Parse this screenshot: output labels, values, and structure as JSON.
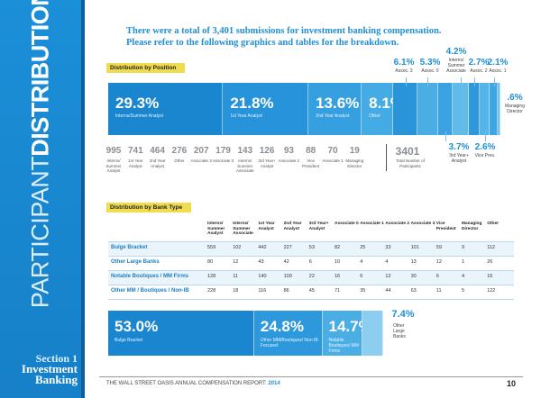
{
  "sidebar": {
    "title_light": "PARTICIPANT",
    "title_bold": "DISTRIBUTION",
    "section": "Section 1",
    "section_title": "Investment Banking"
  },
  "intro": [
    "There were a total of 3,401 submissions for investment banking compensation.",
    "Please refer to the following graphics and tables for the breakdown."
  ],
  "position": {
    "heading": "Distribution by Position",
    "segments": [
      {
        "value": 29.3,
        "label": "29.3%",
        "name": "Interns/Summer Analyst"
      },
      {
        "value": 21.8,
        "label": "21.8%",
        "name": "1st Year Analyst"
      },
      {
        "value": 13.6,
        "label": "13.6%",
        "name": "2nd Year Analyst"
      },
      {
        "value": 8.1,
        "label": "8.1%",
        "name": "Other"
      },
      {
        "value": 6.1,
        "label": "6.1%",
        "name": "Assoc. 3"
      },
      {
        "value": 5.3,
        "label": "5.3%",
        "name": "Assoc. 0"
      },
      {
        "value": 3.7,
        "label": "3.7%",
        "name": "3rd Year+ Analyst"
      },
      {
        "value": 4.2,
        "label": "4.2%",
        "name": "Interns/ Summer Associate"
      },
      {
        "value": 2.7,
        "label": "2.7%",
        "name": "Assoc. 2"
      },
      {
        "value": 2.6,
        "label": "2.6%",
        "name": "Vice Pres."
      },
      {
        "value": 2.1,
        "label": "2.1%",
        "name": "Assoc. 1"
      },
      {
        "value": 0.6,
        "label": ".6%",
        "name": "Managing Director"
      }
    ],
    "counts": [
      {
        "value": 995,
        "name": "Interns/ Summer Analyst"
      },
      {
        "value": 741,
        "name": "1st Year Analyst"
      },
      {
        "value": 464,
        "name": "2nd Year Analyst"
      },
      {
        "value": 276,
        "name": "Other"
      },
      {
        "value": 207,
        "name": "Associate 3"
      },
      {
        "value": 179,
        "name": "Associate 0"
      },
      {
        "value": 143,
        "name": "Interns/ Summer Associate"
      },
      {
        "value": 126,
        "name": "3rd Year+ Analyst"
      },
      {
        "value": 93,
        "name": "Associate 2"
      },
      {
        "value": 88,
        "name": "Vice President"
      },
      {
        "value": 70,
        "name": "Associate 1"
      },
      {
        "value": 19,
        "name": "Managing Director"
      }
    ],
    "total": {
      "value": 3401,
      "name": "Total Number of Participants"
    }
  },
  "bank": {
    "heading": "Distribution by Bank Type",
    "columns": [
      "Interns/ Summer Analyst",
      "Interns/ Summer Associate",
      "1st Year Analyst",
      "2nd Year Analyst",
      "3rd Year+ Analyst",
      "Associate 0",
      "Associate 1",
      "Associate 2",
      "Associate 3",
      "Vice President",
      "Managing Director",
      "Other"
    ],
    "rows": [
      {
        "name": "Bulge Bracket",
        "values": [
          559,
          102,
          442,
          227,
          53,
          82,
          25,
          33,
          101,
          59,
          9,
          112
        ]
      },
      {
        "name": "Other Large Banks",
        "values": [
          80,
          12,
          43,
          42,
          6,
          10,
          4,
          4,
          13,
          12,
          1,
          26
        ]
      },
      {
        "name": "Notable Boutiques / MM Firms",
        "values": [
          128,
          11,
          140,
          109,
          22,
          16,
          6,
          12,
          30,
          6,
          4,
          16
        ]
      },
      {
        "name": "Other MM / Boutiques / Non-IB",
        "values": [
          228,
          18,
          116,
          86,
          45,
          71,
          35,
          44,
          63,
          11,
          5,
          122
        ]
      }
    ],
    "segments": [
      {
        "value": 53.0,
        "label": "53.0%",
        "name": "Bulge Bracket"
      },
      {
        "value": 24.8,
        "label": "24.8%",
        "name": "Other MM/Boutiques/ Non IB Focused"
      },
      {
        "value": 14.7,
        "label": "14.7%",
        "name": "Notable Boutiques/ MM Firms"
      },
      {
        "value": 7.4,
        "label": "7.4%",
        "name": "Other Large Banks"
      }
    ]
  },
  "footer": {
    "text": "THE WALL STREET OASIS ANNUAL COMPENSATION REPORT:",
    "year": "2014",
    "page": "10"
  }
}
